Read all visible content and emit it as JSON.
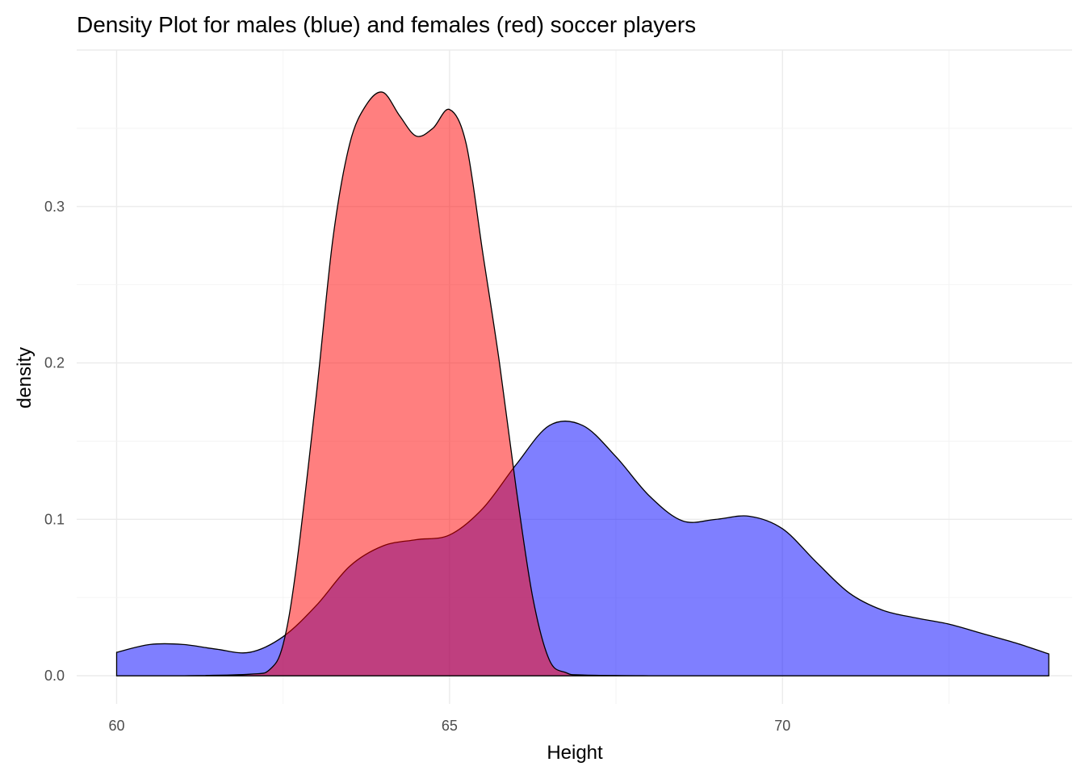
{
  "chart_data": {
    "type": "area",
    "title": "Density Plot for males (blue) and females (red) soccer players",
    "xlabel": "Height",
    "ylabel": "density",
    "xlim": [
      59.4,
      74.35
    ],
    "ylim": [
      -0.018,
      0.4
    ],
    "x_ticks": [
      60,
      65,
      70
    ],
    "x_tick_labels": [
      "60",
      "65",
      "70"
    ],
    "y_ticks": [
      0.0,
      0.1,
      0.2,
      0.3
    ],
    "y_tick_labels": [
      "0.0",
      "0.1",
      "0.2",
      "0.3"
    ],
    "grid": true,
    "legend": "none",
    "series": [
      {
        "color": "#0000ff",
        "opacity": 0.5,
        "x": [
          60,
          60.5,
          61,
          61.5,
          62,
          62.5,
          63,
          63.5,
          64,
          64.5,
          65,
          65.5,
          66,
          66.5,
          67,
          67.5,
          68,
          68.5,
          69,
          69.5,
          70,
          70.5,
          71,
          71.5,
          72,
          72.5,
          73,
          73.5,
          74
        ],
        "values": [
          0.015,
          0.02,
          0.02,
          0.017,
          0.015,
          0.025,
          0.045,
          0.07,
          0.083,
          0.087,
          0.09,
          0.107,
          0.135,
          0.16,
          0.16,
          0.14,
          0.115,
          0.099,
          0.1,
          0.102,
          0.094,
          0.073,
          0.053,
          0.042,
          0.037,
          0.033,
          0.027,
          0.021,
          0.014
        ]
      },
      {
        "color": "#ff0000",
        "opacity": 0.5,
        "x": [
          60,
          61,
          62,
          62.3,
          62.5,
          62.7,
          63,
          63.25,
          63.5,
          63.75,
          64,
          64.25,
          64.5,
          64.75,
          65,
          65.25,
          65.5,
          65.75,
          66,
          66.25,
          66.5,
          66.75,
          67,
          68,
          69,
          70,
          71,
          72,
          73,
          74
        ],
        "values": [
          0,
          0,
          0.001,
          0.004,
          0.02,
          0.07,
          0.18,
          0.28,
          0.34,
          0.365,
          0.373,
          0.358,
          0.345,
          0.35,
          0.362,
          0.34,
          0.27,
          0.2,
          0.12,
          0.05,
          0.01,
          0.002,
          0.0005,
          0,
          0,
          0,
          0,
          0,
          0,
          0
        ]
      }
    ]
  }
}
